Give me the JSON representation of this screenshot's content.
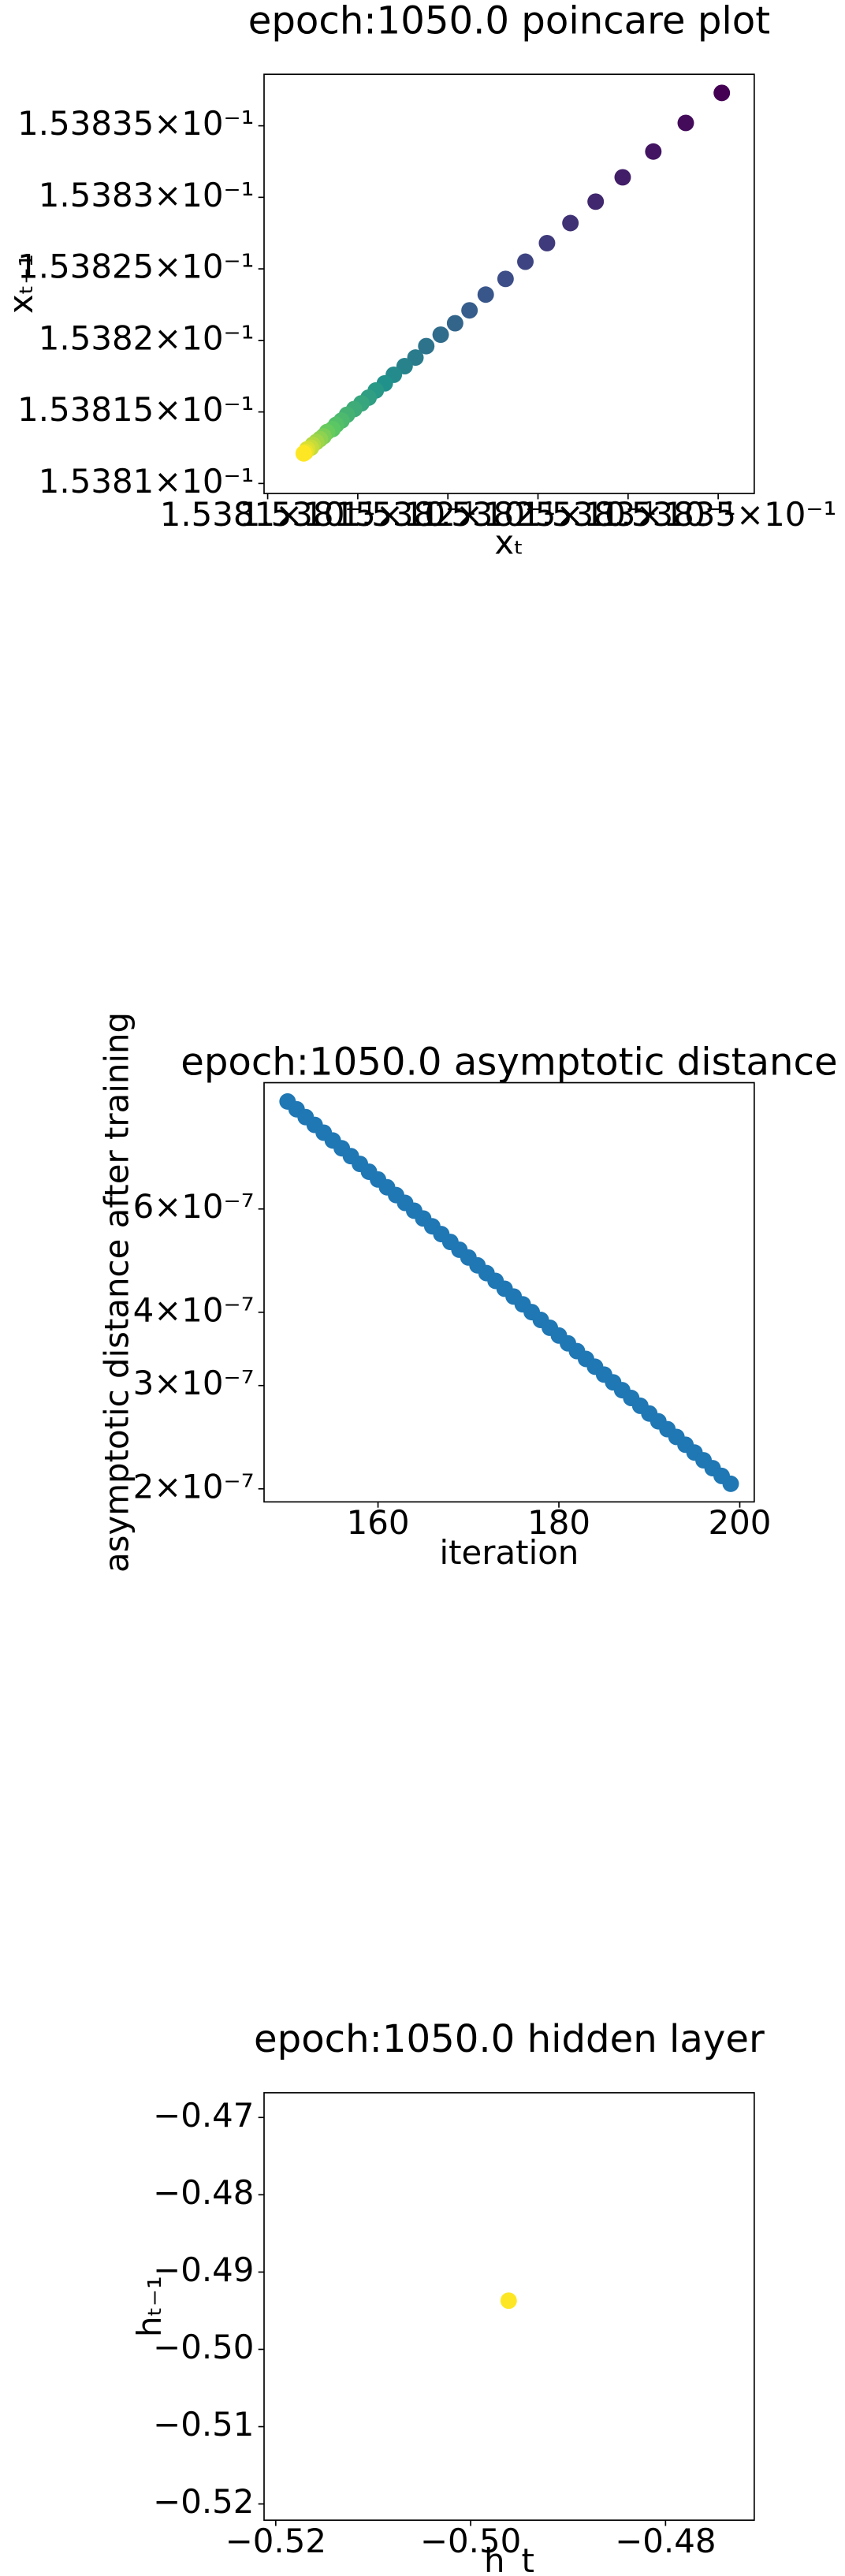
{
  "chart_data": [
    {
      "type": "scatter",
      "title": "epoch:1050.0 poincare plot",
      "xlabel": "xₜ",
      "ylabel": "xₜ₋₁",
      "log_scale": true,
      "colormap": [
        "#440154",
        "#3b528b",
        "#21918c",
        "#5ec962",
        "#fde725"
      ],
      "x": [
        0.1538352,
        0.1538332,
        0.1538314,
        0.1538297,
        0.1538282,
        0.1538268,
        0.1538255,
        0.1538243,
        0.1538232,
        0.1538221,
        0.1538212,
        0.1538204,
        0.1538196,
        0.1538188,
        0.1538182,
        0.1538176,
        0.153817,
        0.1538165,
        0.153816,
        0.1538156,
        0.1538152,
        0.1538148,
        0.1538144,
        0.1538141,
        0.1538138,
        0.1538136,
        0.1538133,
        0.1538131,
        0.1538129,
        0.1538127,
        0.1538125,
        0.1538124,
        0.1538122,
        0.1538121,
        0.153812
      ],
      "y": [
        0.1538373,
        0.1538352,
        0.1538332,
        0.1538314,
        0.1538297,
        0.1538282,
        0.1538268,
        0.1538255,
        0.1538243,
        0.1538232,
        0.1538221,
        0.1538212,
        0.1538204,
        0.1538196,
        0.1538188,
        0.1538182,
        0.1538176,
        0.153817,
        0.1538165,
        0.153816,
        0.1538156,
        0.1538152,
        0.1538148,
        0.1538144,
        0.1538141,
        0.1538138,
        0.1538136,
        0.1538133,
        0.1538131,
        0.1538129,
        0.1538127,
        0.1538125,
        0.1538124,
        0.1538122,
        0.1538121
      ],
      "xlim": [
        0.1538098,
        0.153837
      ],
      "ylim": [
        0.1538093,
        0.1538386
      ],
      "xticks": [
        {
          "value": 0.15381,
          "label": "1.5381×10⁻¹"
        },
        {
          "value": 0.153815,
          "label": "1.53815×10⁻¹"
        },
        {
          "value": 0.15382,
          "label": "1.5382×10⁻¹"
        },
        {
          "value": 0.153825,
          "label": "1.53825×10⁻¹"
        },
        {
          "value": 0.15383,
          "label": "1.5383×10⁻¹"
        },
        {
          "value": 0.153835,
          "label": "1.53835×10⁻¹"
        }
      ],
      "yticks": [
        {
          "value": 0.15381,
          "label": "1.5381×10⁻¹"
        },
        {
          "value": 0.153815,
          "label": "1.53815×10⁻¹"
        },
        {
          "value": 0.15382,
          "label": "1.5382×10⁻¹"
        },
        {
          "value": 0.153825,
          "label": "1.53825×10⁻¹"
        },
        {
          "value": 0.15383,
          "label": "1.5383×10⁻¹"
        },
        {
          "value": 0.153835,
          "label": "1.53835×10⁻¹"
        }
      ]
    },
    {
      "type": "scatter",
      "title": "epoch:1050.0 asymptotic distance",
      "xlabel": "iteration",
      "ylabel": "asymptotic distance after training",
      "log_scale_y": true,
      "color": "#1f77b4",
      "x": [
        150,
        151,
        152,
        153,
        154,
        155,
        156,
        157,
        158,
        159,
        160,
        161,
        162,
        163,
        164,
        165,
        166,
        167,
        168,
        169,
        170,
        171,
        172,
        173,
        174,
        175,
        176,
        177,
        178,
        179,
        180,
        181,
        182,
        183,
        184,
        185,
        186,
        187,
        188,
        189,
        190,
        191,
        192,
        193,
        194,
        195,
        196,
        197,
        198,
        199
      ],
      "y": [
        9.15e-07,
        8.874e-07,
        8.606e-07,
        8.346e-07,
        8.095e-07,
        7.85e-07,
        7.614e-07,
        7.384e-07,
        7.161e-07,
        6.945e-07,
        6.736e-07,
        6.533e-07,
        6.336e-07,
        6.145e-07,
        5.959e-07,
        5.78e-07,
        5.605e-07,
        5.436e-07,
        5.272e-07,
        5.113e-07,
        4.959e-07,
        4.809e-07,
        4.664e-07,
        4.524e-07,
        4.387e-07,
        4.255e-07,
        4.127e-07,
        4.002e-07,
        3.881e-07,
        3.764e-07,
        3.651e-07,
        3.541e-07,
        3.434e-07,
        3.33e-07,
        3.23e-07,
        3.132e-07,
        3.038e-07,
        2.946e-07,
        2.857e-07,
        2.771e-07,
        2.688e-07,
        2.607e-07,
        2.528e-07,
        2.452e-07,
        2.378e-07,
        2.306e-07,
        2.237e-07,
        2.169e-07,
        2.104e-07,
        2.04e-07
      ],
      "xlim": [
        147.4,
        201.6
      ],
      "ylim": [
        1.9e-07,
        9.85e-07
      ],
      "xticks": [
        160,
        180,
        200
      ],
      "yticks": [
        {
          "value": 2e-07,
          "label": "2×10⁻⁷"
        },
        {
          "value": 3e-07,
          "label": "3×10⁻⁷"
        },
        {
          "value": 4e-07,
          "label": "4×10⁻⁷"
        },
        {
          "value": 6e-07,
          "label": "6×10⁻⁷"
        }
      ]
    },
    {
      "type": "scatter",
      "title": "epoch:1050.0 hidden layer",
      "xlabel": "h_t",
      "ylabel": "hₜ₋₁",
      "color": "#fde725",
      "x": [
        -0.4961
      ],
      "y": [
        -0.4937
      ],
      "xlim": [
        -0.5212,
        -0.4709
      ],
      "ylim": [
        -0.5221,
        -0.4668
      ],
      "xticks": [
        {
          "value": -0.52,
          "label": "−0.52"
        },
        {
          "value": -0.5,
          "label": "−0.50"
        },
        {
          "value": -0.48,
          "label": "−0.48"
        }
      ],
      "yticks": [
        {
          "value": -0.52,
          "label": "−0.52"
        },
        {
          "value": -0.51,
          "label": "−0.51"
        },
        {
          "value": -0.5,
          "label": "−0.50"
        },
        {
          "value": -0.49,
          "label": "−0.49"
        },
        {
          "value": -0.48,
          "label": "−0.48"
        },
        {
          "value": -0.47,
          "label": "−0.47"
        }
      ]
    }
  ]
}
